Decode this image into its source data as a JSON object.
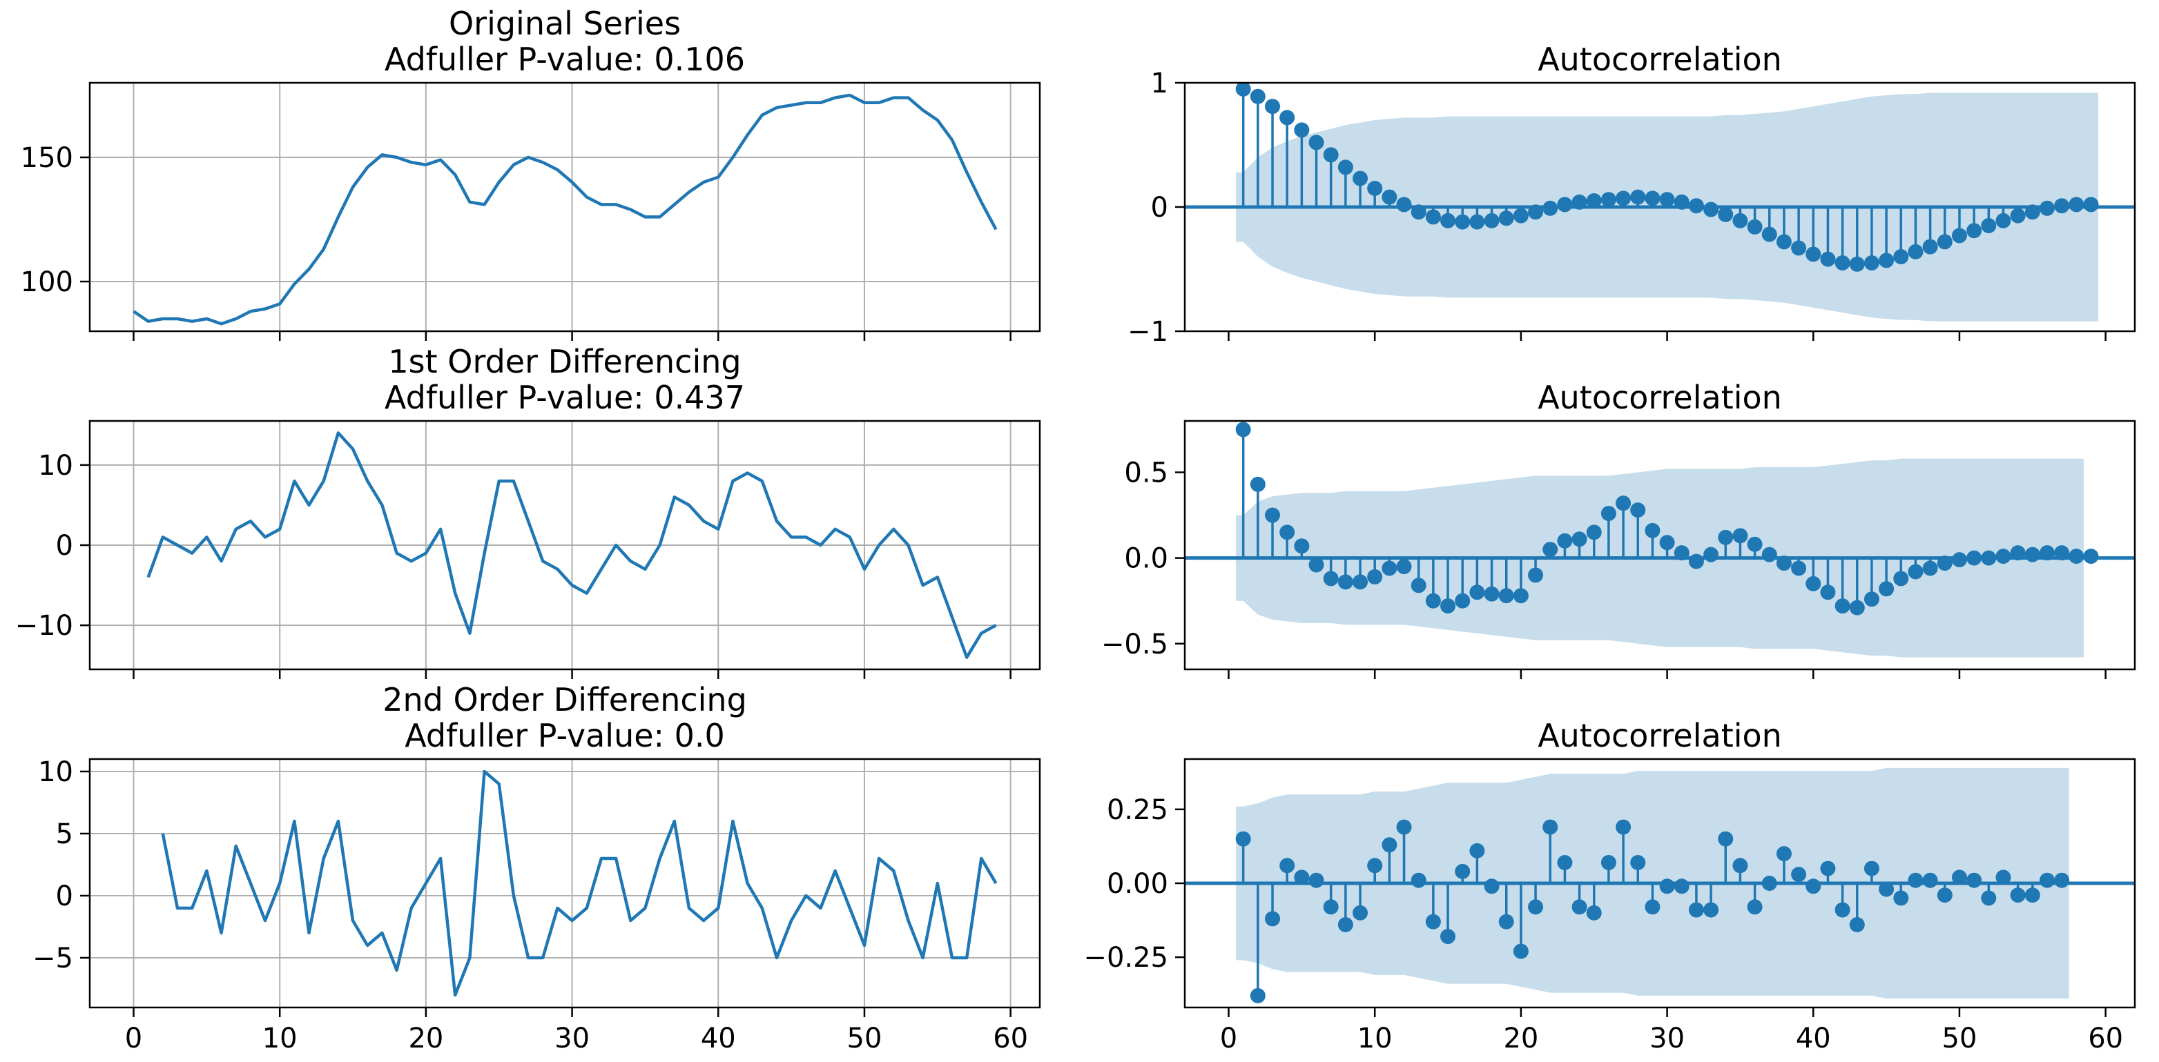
{
  "colors": {
    "line": "#1f77b4",
    "band": "#1f77b4",
    "grid": "#b0b0b0",
    "axis": "#000000"
  },
  "chart_data": [
    {
      "type": "line",
      "title": "Original Series",
      "subtitle": "Adfuller P-value: 0.106",
      "xlim": [
        -3,
        62
      ],
      "ylim": [
        80,
        180
      ],
      "xticks": [
        0,
        10,
        20,
        30,
        40,
        50,
        60
      ],
      "yticks": [
        100,
        150
      ],
      "show_xticklabels": false,
      "grid": true,
      "x_start": 0,
      "values": [
        88,
        84,
        85,
        85,
        84,
        85,
        83,
        85,
        88,
        89,
        91,
        99,
        105,
        113,
        126,
        138,
        146,
        151,
        150,
        148,
        147,
        149,
        143,
        132,
        131,
        140,
        147,
        150,
        148,
        145,
        140,
        134,
        131,
        131,
        129,
        126,
        126,
        131,
        136,
        140,
        142,
        150,
        159,
        167,
        170,
        171,
        172,
        172,
        174,
        175,
        172,
        172,
        174,
        174,
        169,
        165,
        157,
        144,
        132,
        121
      ]
    },
    {
      "type": "stem",
      "title": "Autocorrelation",
      "xlim": [
        -3,
        62
      ],
      "ylim": [
        -1,
        1
      ],
      "xticks": [
        0,
        10,
        20,
        30,
        40,
        50,
        60
      ],
      "yticks": [
        -1,
        0,
        1
      ],
      "show_xticklabels": false,
      "grid": false,
      "lags_start": 1,
      "values": [
        0.95,
        0.89,
        0.81,
        0.72,
        0.62,
        0.52,
        0.42,
        0.32,
        0.23,
        0.15,
        0.08,
        0.02,
        -0.04,
        -0.08,
        -0.11,
        -0.12,
        -0.12,
        -0.11,
        -0.09,
        -0.07,
        -0.04,
        -0.01,
        0.02,
        0.04,
        0.05,
        0.06,
        0.07,
        0.08,
        0.07,
        0.06,
        0.04,
        0.01,
        -0.02,
        -0.06,
        -0.11,
        -0.16,
        -0.22,
        -0.28,
        -0.33,
        -0.38,
        -0.42,
        -0.45,
        -0.46,
        -0.45,
        -0.43,
        -0.4,
        -0.36,
        -0.32,
        -0.28,
        -0.23,
        -0.19,
        -0.15,
        -0.11,
        -0.07,
        -0.04,
        -0.01,
        0.01,
        0.02,
        0.02
      ],
      "conf_upper": [
        0.28,
        0.4,
        0.48,
        0.53,
        0.57,
        0.6,
        0.63,
        0.66,
        0.68,
        0.7,
        0.71,
        0.72,
        0.72,
        0.72,
        0.73,
        0.73,
        0.73,
        0.73,
        0.73,
        0.73,
        0.73,
        0.73,
        0.73,
        0.73,
        0.73,
        0.73,
        0.73,
        0.73,
        0.73,
        0.73,
        0.73,
        0.73,
        0.73,
        0.74,
        0.74,
        0.75,
        0.76,
        0.77,
        0.79,
        0.81,
        0.83,
        0.85,
        0.87,
        0.89,
        0.9,
        0.91,
        0.91,
        0.92,
        0.92,
        0.92,
        0.92,
        0.92,
        0.92,
        0.92,
        0.92,
        0.92,
        0.92,
        0.92,
        0.92
      ]
    },
    {
      "type": "line",
      "title": "1st Order Differencing",
      "subtitle": "Adfuller P-value: 0.437",
      "xlim": [
        -3,
        62
      ],
      "ylim": [
        -15.5,
        15.5
      ],
      "xticks": [
        0,
        10,
        20,
        30,
        40,
        50,
        60
      ],
      "yticks": [
        -10,
        0,
        10
      ],
      "show_xticklabels": false,
      "grid": true,
      "x_start": 1,
      "values": [
        -4,
        1,
        0,
        -1,
        1,
        -2,
        2,
        3,
        1,
        2,
        8,
        5,
        8,
        14,
        12,
        8,
        5,
        -1,
        -2,
        -1,
        2,
        -6,
        -11,
        -1,
        8,
        8,
        3,
        -2,
        -3,
        -5,
        -6,
        -3,
        0,
        -2,
        -3,
        0,
        6,
        5,
        3,
        2,
        8,
        9,
        8,
        3,
        1,
        1,
        0,
        2,
        1,
        -3,
        0,
        2,
        0,
        -5,
        -4,
        -9,
        -14,
        -11,
        -10
      ]
    },
    {
      "type": "stem",
      "title": "Autocorrelation",
      "xlim": [
        -3,
        62
      ],
      "ylim": [
        -0.65,
        0.8
      ],
      "xticks": [
        0,
        10,
        20,
        30,
        40,
        50,
        60
      ],
      "yticks": [
        -0.5,
        0.0,
        0.5
      ],
      "ytick_labels": [
        "−0.5",
        "0.0",
        "0.5"
      ],
      "show_xticklabels": false,
      "grid": false,
      "lags_start": 1,
      "values": [
        0.75,
        0.43,
        0.25,
        0.15,
        0.07,
        -0.04,
        -0.12,
        -0.14,
        -0.14,
        -0.11,
        -0.06,
        -0.05,
        -0.16,
        -0.25,
        -0.28,
        -0.25,
        -0.2,
        -0.21,
        -0.22,
        -0.22,
        -0.1,
        0.05,
        0.1,
        0.11,
        0.15,
        0.26,
        0.32,
        0.28,
        0.16,
        0.09,
        0.03,
        -0.02,
        0.02,
        0.12,
        0.13,
        0.08,
        0.02,
        -0.03,
        -0.06,
        -0.15,
        -0.2,
        -0.28,
        -0.29,
        -0.24,
        -0.18,
        -0.12,
        -0.08,
        -0.06,
        -0.03,
        -0.01,
        0.0,
        0.0,
        0.01,
        0.03,
        0.02,
        0.03,
        0.03,
        0.01,
        0.01
      ],
      "conf_upper": [
        0.25,
        0.33,
        0.36,
        0.37,
        0.38,
        0.38,
        0.38,
        0.39,
        0.39,
        0.39,
        0.39,
        0.39,
        0.4,
        0.41,
        0.42,
        0.43,
        0.44,
        0.45,
        0.46,
        0.47,
        0.48,
        0.48,
        0.48,
        0.48,
        0.48,
        0.48,
        0.49,
        0.5,
        0.51,
        0.52,
        0.52,
        0.52,
        0.52,
        0.52,
        0.52,
        0.53,
        0.53,
        0.53,
        0.53,
        0.53,
        0.54,
        0.55,
        0.56,
        0.57,
        0.57,
        0.58,
        0.58,
        0.58,
        0.58,
        0.58,
        0.58,
        0.58,
        0.58,
        0.58,
        0.58,
        0.58,
        0.58,
        0.58
      ]
    },
    {
      "type": "line",
      "title": "2nd Order Differencing",
      "subtitle": "Adfuller P-value: 0.0",
      "xlim": [
        -3,
        62
      ],
      "ylim": [
        -9,
        11
      ],
      "xticks": [
        0,
        10,
        20,
        30,
        40,
        50,
        60
      ],
      "yticks": [
        -5,
        0,
        5,
        10
      ],
      "show_xticklabels": true,
      "grid": true,
      "x_start": 2,
      "values": [
        5,
        -1,
        -1,
        2,
        -3,
        4,
        1,
        -2,
        1,
        6,
        -3,
        3,
        6,
        -2,
        -4,
        -3,
        -6,
        -1,
        1,
        3,
        -8,
        -5,
        10,
        9,
        0,
        -5,
        -5,
        -1,
        -2,
        -1,
        3,
        3,
        -2,
        -1,
        3,
        6,
        -1,
        -2,
        -1,
        6,
        1,
        -1,
        -5,
        -2,
        0,
        -1,
        2,
        -1,
        -4,
        3,
        2,
        -2,
        -5,
        1,
        -5,
        -5,
        3,
        1
      ]
    },
    {
      "type": "stem",
      "title": "Autocorrelation",
      "xlim": [
        -3,
        62
      ],
      "ylim": [
        -0.42,
        0.42
      ],
      "xticks": [
        0,
        10,
        20,
        30,
        40,
        50,
        60
      ],
      "yticks": [
        -0.25,
        0.0,
        0.25
      ],
      "ytick_labels": [
        "−0.25",
        "0.00",
        "0.25"
      ],
      "show_xticklabels": true,
      "grid": false,
      "lags_start": 1,
      "values": [
        0.15,
        -0.38,
        -0.12,
        0.06,
        0.02,
        0.01,
        -0.08,
        -0.14,
        -0.1,
        0.06,
        0.13,
        0.19,
        0.01,
        -0.13,
        -0.18,
        0.04,
        0.11,
        -0.01,
        -0.13,
        -0.23,
        -0.08,
        0.19,
        0.07,
        -0.08,
        -0.1,
        0.07,
        0.19,
        0.07,
        -0.08,
        -0.01,
        -0.01,
        -0.09,
        -0.09,
        0.15,
        0.06,
        -0.08,
        0.0,
        0.1,
        0.03,
        -0.01,
        0.05,
        -0.09,
        -0.14,
        0.05,
        -0.02,
        -0.05,
        0.01,
        0.01,
        -0.04,
        0.02,
        0.01,
        -0.05,
        0.02,
        -0.04,
        -0.04,
        0.01,
        0.01
      ],
      "conf_upper": [
        0.26,
        0.27,
        0.29,
        0.3,
        0.3,
        0.3,
        0.3,
        0.3,
        0.3,
        0.31,
        0.31,
        0.31,
        0.32,
        0.33,
        0.34,
        0.34,
        0.34,
        0.34,
        0.34,
        0.35,
        0.36,
        0.37,
        0.37,
        0.37,
        0.37,
        0.37,
        0.37,
        0.38,
        0.38,
        0.38,
        0.38,
        0.38,
        0.38,
        0.38,
        0.38,
        0.38,
        0.38,
        0.38,
        0.38,
        0.38,
        0.38,
        0.38,
        0.38,
        0.38,
        0.39,
        0.39,
        0.39,
        0.39,
        0.39,
        0.39,
        0.39,
        0.39,
        0.39,
        0.39,
        0.39,
        0.39,
        0.39
      ]
    }
  ]
}
